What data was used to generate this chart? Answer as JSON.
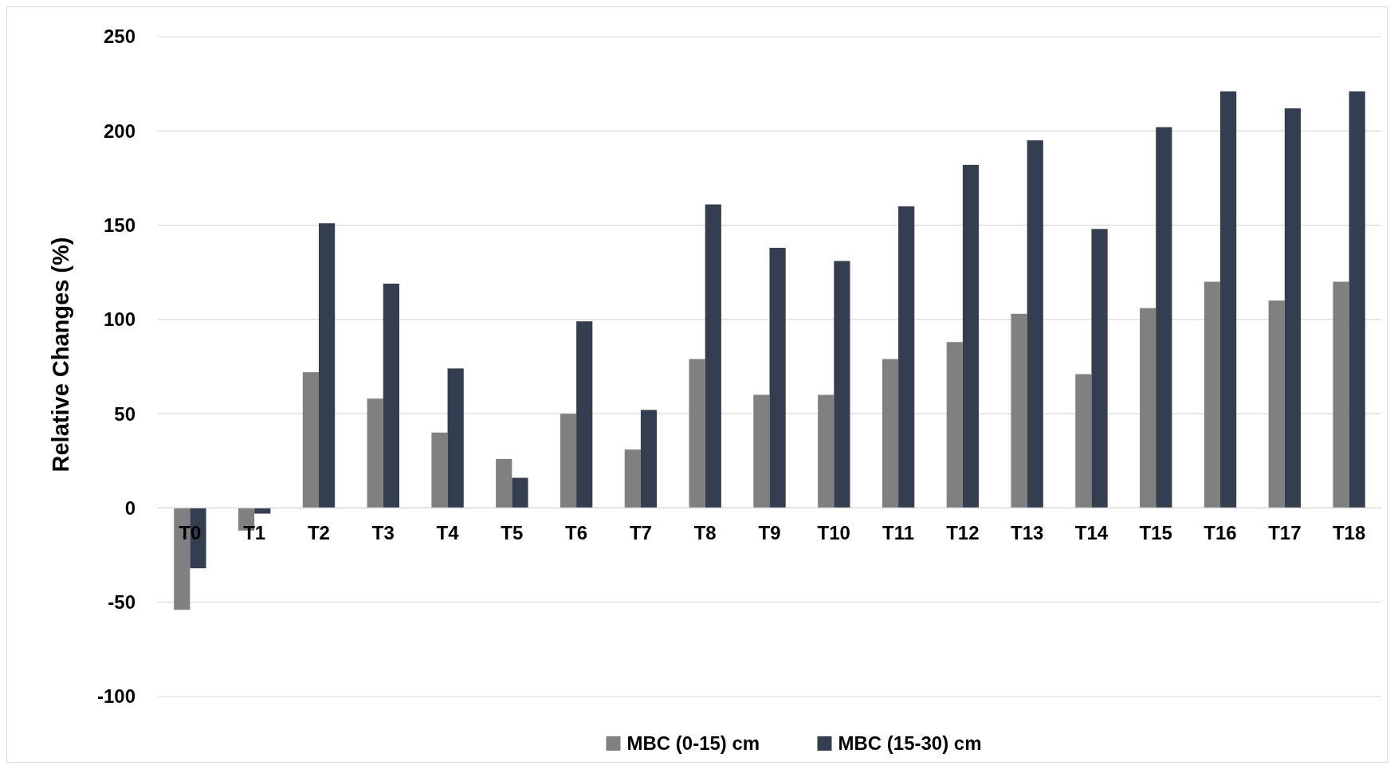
{
  "chart_data": {
    "type": "bar",
    "ylabel": "Relative Changes (%)",
    "categories": [
      "T0",
      "T1",
      "T2",
      "T3",
      "T4",
      "T5",
      "T6",
      "T7",
      "T8",
      "T9",
      "T10",
      "T11",
      "T12",
      "T13",
      "T14",
      "T15",
      "T16",
      "T17",
      "T18"
    ],
    "series": [
      {
        "name": "MBC (0-15) cm",
        "color": "#808080",
        "values": [
          -54,
          -12,
          72,
          58,
          40,
          26,
          50,
          31,
          79,
          60,
          60,
          79,
          88,
          103,
          71,
          106,
          120,
          110,
          120
        ]
      },
      {
        "name": "MBC (15-30) cm",
        "color": "#333f50",
        "values": [
          -32,
          -3,
          151,
          119,
          74,
          16,
          99,
          52,
          161,
          138,
          131,
          160,
          182,
          195,
          148,
          202,
          221,
          212,
          221
        ]
      }
    ],
    "ylim": [
      -100,
      250
    ],
    "yticks": [
      -100,
      -50,
      0,
      50,
      100,
      150,
      200,
      250
    ],
    "grid": "y",
    "legend": "bottom"
  }
}
